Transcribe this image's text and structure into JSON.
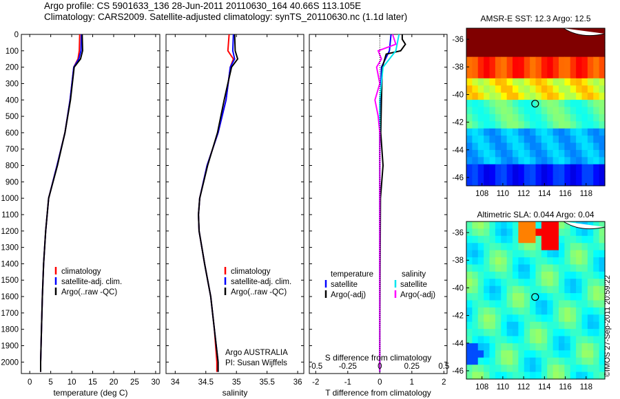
{
  "header": {
    "line1": "Argo profile: CS 5901633_136 28-Jun-2011 20110630_164 40.66S 113.105E",
    "line2": "Climatology: CARS2009. Satellite-adjusted climatology: synTS_20110630.nc (1.1d later)"
  },
  "credit": "©IMOS 27-Sep-2011 20:59:22",
  "depth_ticks": [
    "0",
    "100",
    "200",
    "300",
    "400",
    "500",
    "600",
    "700",
    "800",
    "900",
    "1000",
    "1100",
    "1200",
    "1300",
    "1400",
    "1500",
    "1600",
    "1700",
    "1800",
    "1900",
    "2000"
  ],
  "colors": {
    "climatology": "#ff0000",
    "satellite": "#0000ff",
    "argo": "#000000",
    "sat_s": "#00e5ee",
    "argo_s": "#ff00ff"
  },
  "legend_main": [
    "climatology",
    "satellite-adj. clim.",
    "Argo(..raw -QC)"
  ],
  "legend_diff": {
    "temp_head": "temperature",
    "sal_head": "salinity",
    "temp_items": [
      "satellite",
      "Argo(-adj)"
    ],
    "sal_items": [
      "satellite",
      "Argo(-adj)"
    ]
  },
  "salinity_note": [
    "Argo AUSTRALIA",
    "PI: Susan Wijffels"
  ],
  "diff_top_label": "S difference from climatology",
  "chart_data": [
    {
      "type": "line",
      "xlabel": "temperature (deg C)",
      "xlim": [
        -2,
        31
      ],
      "ylim": [
        0,
        2070
      ],
      "xticks": [
        "0",
        "5",
        "10",
        "15",
        "20",
        "25",
        "30"
      ],
      "series": [
        {
          "name": "climatology",
          "depth": [
            0,
            100,
            150,
            200,
            400,
            600,
            800,
            1000,
            1200,
            1400,
            1600,
            1800,
            2000,
            2060
          ],
          "values": [
            11.9,
            11.8,
            11.5,
            10.5,
            9.6,
            8.4,
            6.5,
            4.5,
            3.8,
            3.3,
            3.0,
            2.8,
            2.6,
            2.6
          ]
        },
        {
          "name": "satellite-adj. clim.",
          "depth": [
            0,
            100,
            150,
            200,
            400,
            600,
            800,
            1000,
            1200,
            1400,
            1600,
            1800,
            2000,
            2060
          ],
          "values": [
            12.3,
            12.2,
            11.7,
            10.5,
            9.6,
            8.4,
            6.5,
            4.5,
            3.8,
            3.3,
            3.0,
            2.8,
            2.6,
            2.6
          ]
        },
        {
          "name": "Argo(..raw -QC)",
          "depth": [
            0,
            100,
            150,
            200,
            400,
            600,
            800,
            1000,
            1200,
            1400,
            1600,
            1800,
            2000,
            2060
          ],
          "values": [
            12.5,
            12.6,
            12.1,
            10.6,
            9.7,
            8.4,
            6.6,
            4.5,
            3.8,
            3.3,
            3.0,
            2.8,
            2.6,
            2.6
          ]
        }
      ]
    },
    {
      "type": "line",
      "xlabel": "salinity",
      "xlim": [
        33.85,
        36.1
      ],
      "ylim": [
        0,
        2070
      ],
      "xticks": [
        "34",
        "34.5",
        "35",
        "35.5",
        "36"
      ],
      "series": [
        {
          "name": "climatology",
          "depth": [
            0,
            100,
            150,
            200,
            400,
            600,
            800,
            1000,
            1100,
            1200,
            1400,
            1600,
            1800,
            2000,
            2060
          ],
          "values": [
            34.88,
            34.86,
            34.95,
            34.9,
            34.83,
            34.7,
            34.52,
            34.4,
            34.38,
            34.39,
            34.48,
            34.58,
            34.64,
            34.68,
            34.68
          ]
        },
        {
          "name": "satellite-adj. clim.",
          "depth": [
            0,
            100,
            150,
            200,
            400,
            600,
            800,
            1000,
            1100,
            1200,
            1400,
            1600,
            1800,
            2000,
            2060
          ],
          "values": [
            34.95,
            34.94,
            34.97,
            34.9,
            34.83,
            34.7,
            34.52,
            34.4,
            34.38,
            34.39,
            34.48,
            34.58,
            34.64,
            34.7,
            34.7
          ]
        },
        {
          "name": "Argo(..raw -QC)",
          "depth": [
            0,
            100,
            150,
            200,
            400,
            600,
            800,
            1000,
            1100,
            1200,
            1400,
            1600,
            1800,
            2000,
            2060
          ],
          "values": [
            34.97,
            34.98,
            35.02,
            34.92,
            34.8,
            34.69,
            34.53,
            34.4,
            34.38,
            34.39,
            34.48,
            34.58,
            34.64,
            34.7,
            34.7
          ]
        }
      ]
    },
    {
      "type": "line",
      "xlabel": "T difference from climatology",
      "xlim": [
        -2.2,
        2.1
      ],
      "ylim": [
        0,
        2070
      ],
      "xticks": [
        "-2",
        "-1",
        "0",
        "1",
        "2"
      ],
      "top_xticks": [
        "-0.5",
        "-0.25",
        "0",
        "0.25",
        "0.5"
      ],
      "series": [
        {
          "name": "temperature satellite",
          "depth": [
            0,
            100,
            200,
            400,
            600,
            800,
            1000,
            1400,
            2060
          ],
          "values": [
            0.35,
            0.3,
            0.05,
            0.02,
            0.0,
            0.0,
            0.0,
            0.0,
            0.0
          ]
        },
        {
          "name": "temperature Argo(-adj)",
          "depth": [
            0,
            30,
            60,
            100,
            120,
            200,
            400,
            600,
            800,
            1000,
            1400,
            2060
          ],
          "values": [
            0.7,
            0.7,
            0.8,
            0.65,
            0.2,
            0.08,
            0.05,
            0.03,
            0.1,
            0.02,
            0.01,
            0.0
          ]
        },
        {
          "name": "salinity satellite",
          "depth": [
            0,
            100,
            200,
            400,
            600,
            800,
            1000,
            1400,
            2060
          ],
          "values": [
            0.6,
            0.5,
            0.1,
            0.0,
            0.0,
            0.0,
            0.0,
            0.0,
            0.0
          ]
        },
        {
          "name": "salinity Argo(-adj)",
          "depth": [
            0,
            60,
            100,
            150,
            200,
            300,
            400,
            500,
            600,
            800,
            1000,
            1400,
            2060
          ],
          "values": [
            0.4,
            0.5,
            -0.05,
            0.05,
            -0.1,
            0.0,
            -0.15,
            -0.05,
            0.0,
            0.0,
            0.0,
            0.0,
            0.0
          ]
        }
      ]
    },
    {
      "type": "heatmap",
      "title": "AMSR-E SST: 12.3 Argo: 12.5",
      "xticks": [
        "108",
        "110",
        "112",
        "114",
        "116",
        "118"
      ],
      "yticks": [
        "-36",
        "-38",
        "-40",
        "-42",
        "-44",
        "-46"
      ],
      "xlim": [
        106.5,
        119.8
      ],
      "ylim": [
        -46.6,
        -35.2
      ],
      "marker": {
        "lon": 113.105,
        "lat": -40.66
      }
    },
    {
      "type": "heatmap",
      "title": "Altimetric SLA: 0.044 Argo: 0.04",
      "xticks": [
        "108",
        "110",
        "112",
        "114",
        "116",
        "118"
      ],
      "yticks": [
        "-36",
        "-38",
        "-40",
        "-42",
        "-44",
        "-46"
      ],
      "xlim": [
        106.5,
        119.8
      ],
      "ylim": [
        -46.6,
        -35.2
      ],
      "marker": {
        "lon": 113.105,
        "lat": -40.66
      }
    }
  ]
}
